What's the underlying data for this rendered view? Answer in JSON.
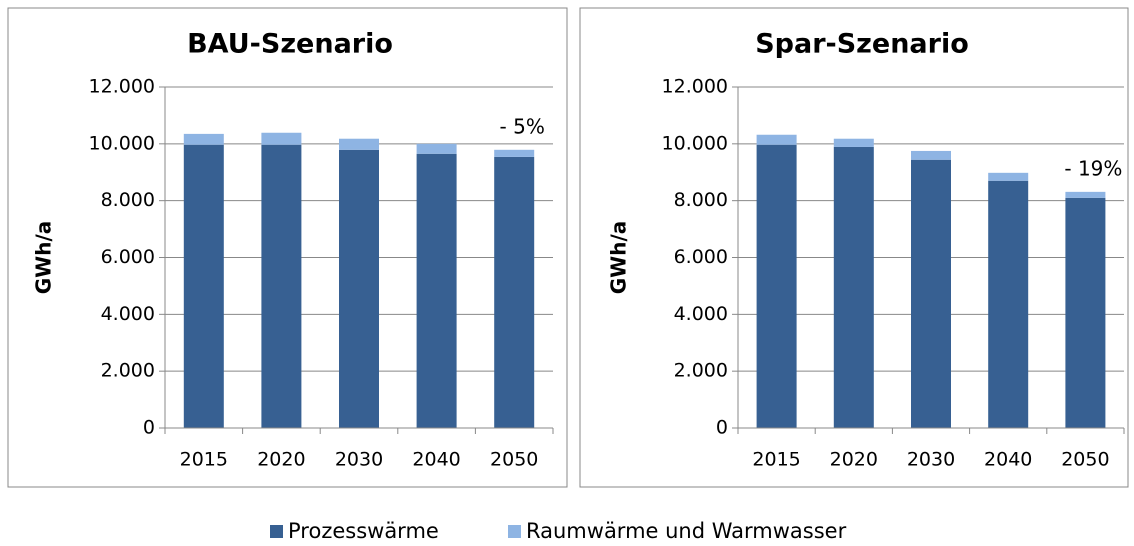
{
  "chart_data": [
    {
      "type": "stacked-bar",
      "title": "BAU-Szenario",
      "ylabel": "GWh/a",
      "categories": [
        "2015",
        "2020",
        "2030",
        "2040",
        "2050"
      ],
      "series": [
        {
          "name": "Prozesswärme",
          "color": "#376092",
          "values": [
            9970,
            9970,
            9790,
            9650,
            9540
          ]
        },
        {
          "name": "Raumwärme und Warmwasser",
          "color": "#8eb4e3",
          "values": [
            380,
            420,
            390,
            350,
            250
          ]
        }
      ],
      "ylim": [
        0,
        12000
      ],
      "yticks": [
        {
          "value": 0,
          "label": "0"
        },
        {
          "value": 2000,
          "label": "2.000"
        },
        {
          "value": 4000,
          "label": "4.000"
        },
        {
          "value": 6000,
          "label": "6.000"
        },
        {
          "value": 8000,
          "label": "8.000"
        },
        {
          "value": 10000,
          "label": "10.000"
        },
        {
          "value": 12000,
          "label": "12.000"
        }
      ],
      "grid": true,
      "annotation": "- 5%"
    },
    {
      "type": "stacked-bar",
      "title": "Spar-Szenario",
      "ylabel": "GWh/a",
      "categories": [
        "2015",
        "2020",
        "2030",
        "2040",
        "2050"
      ],
      "series": [
        {
          "name": "Prozesswärme",
          "color": "#376092",
          "values": [
            9970,
            9890,
            9440,
            8700,
            8100
          ]
        },
        {
          "name": "Raumwärme und Warmwasser",
          "color": "#8eb4e3",
          "values": [
            350,
            290,
            310,
            280,
            210
          ]
        }
      ],
      "ylim": [
        0,
        12000
      ],
      "yticks": [
        {
          "value": 0,
          "label": "0"
        },
        {
          "value": 2000,
          "label": "2.000"
        },
        {
          "value": 4000,
          "label": "4.000"
        },
        {
          "value": 6000,
          "label": "6.000"
        },
        {
          "value": 8000,
          "label": "8.000"
        },
        {
          "value": 10000,
          "label": "10.000"
        },
        {
          "value": 12000,
          "label": "12.000"
        }
      ],
      "grid": true,
      "annotation": "- 19%"
    }
  ]
}
